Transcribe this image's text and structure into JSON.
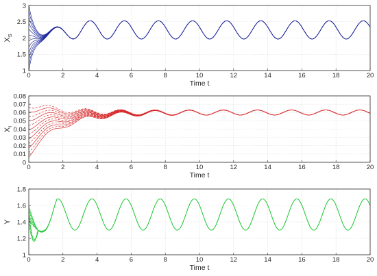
{
  "chart_data": [
    {
      "type": "line",
      "panel": "top",
      "xlabel": "Time t",
      "ylabel": "X",
      "ylabel_sub": "S",
      "xlim": [
        0,
        20
      ],
      "ylim": [
        1,
        3
      ],
      "x_ticks": [
        "0",
        "2",
        "4",
        "6",
        "8",
        "10",
        "12",
        "14",
        "16",
        "18",
        "20"
      ],
      "y_ticks": [
        "1",
        "1.5",
        "2",
        "2.5",
        "3"
      ],
      "grid": true,
      "color": "#1f2a9e",
      "trajectories": 12,
      "initial_range": [
        1.0,
        3.0
      ],
      "oscillation": {
        "mean": 2.25,
        "amplitude": 0.28,
        "period": 2.0,
        "first_peak_t": 1.6
      },
      "converged_by_t": 5
    },
    {
      "type": "line",
      "panel": "middle",
      "xlabel": "Time t",
      "ylabel": "X",
      "ylabel_sub": "I",
      "xlim": [
        0,
        20
      ],
      "ylim": [
        0,
        0.08
      ],
      "x_ticks": [
        "0",
        "2",
        "4",
        "6",
        "8",
        "10",
        "12",
        "14",
        "16",
        "18",
        "20"
      ],
      "y_ticks": [
        "0",
        "0.01",
        "0.02",
        "0.03",
        "0.04",
        "0.05",
        "0.06",
        "0.07",
        "0.08"
      ],
      "grid": true,
      "color": "#d62728",
      "trajectories": 12,
      "initial_range": [
        0.01,
        0.07
      ],
      "oscillation": {
        "mean": 0.06,
        "amplitude": 0.003,
        "period": 2.0
      },
      "converged_by_t": 8
    },
    {
      "type": "line",
      "panel": "bottom",
      "xlabel": "Time t",
      "ylabel": "Y",
      "xlim": [
        0,
        20
      ],
      "ylim": [
        1,
        1.8
      ],
      "x_ticks": [
        "0",
        "2",
        "4",
        "6",
        "8",
        "10",
        "12",
        "14",
        "16",
        "18",
        "20"
      ],
      "y_ticks": [
        "1",
        "1.2",
        "1.4",
        "1.6",
        "1.8"
      ],
      "grid": true,
      "color": "#2ecc40",
      "trajectories": 12,
      "initial_range": [
        1.4,
        1.6
      ],
      "oscillation": {
        "mean": 1.49,
        "amplitude": 0.19,
        "period": 2.0,
        "first_peak_t": 1.7
      },
      "trough_t": 0.75,
      "converged_by_t": 1.5
    }
  ]
}
